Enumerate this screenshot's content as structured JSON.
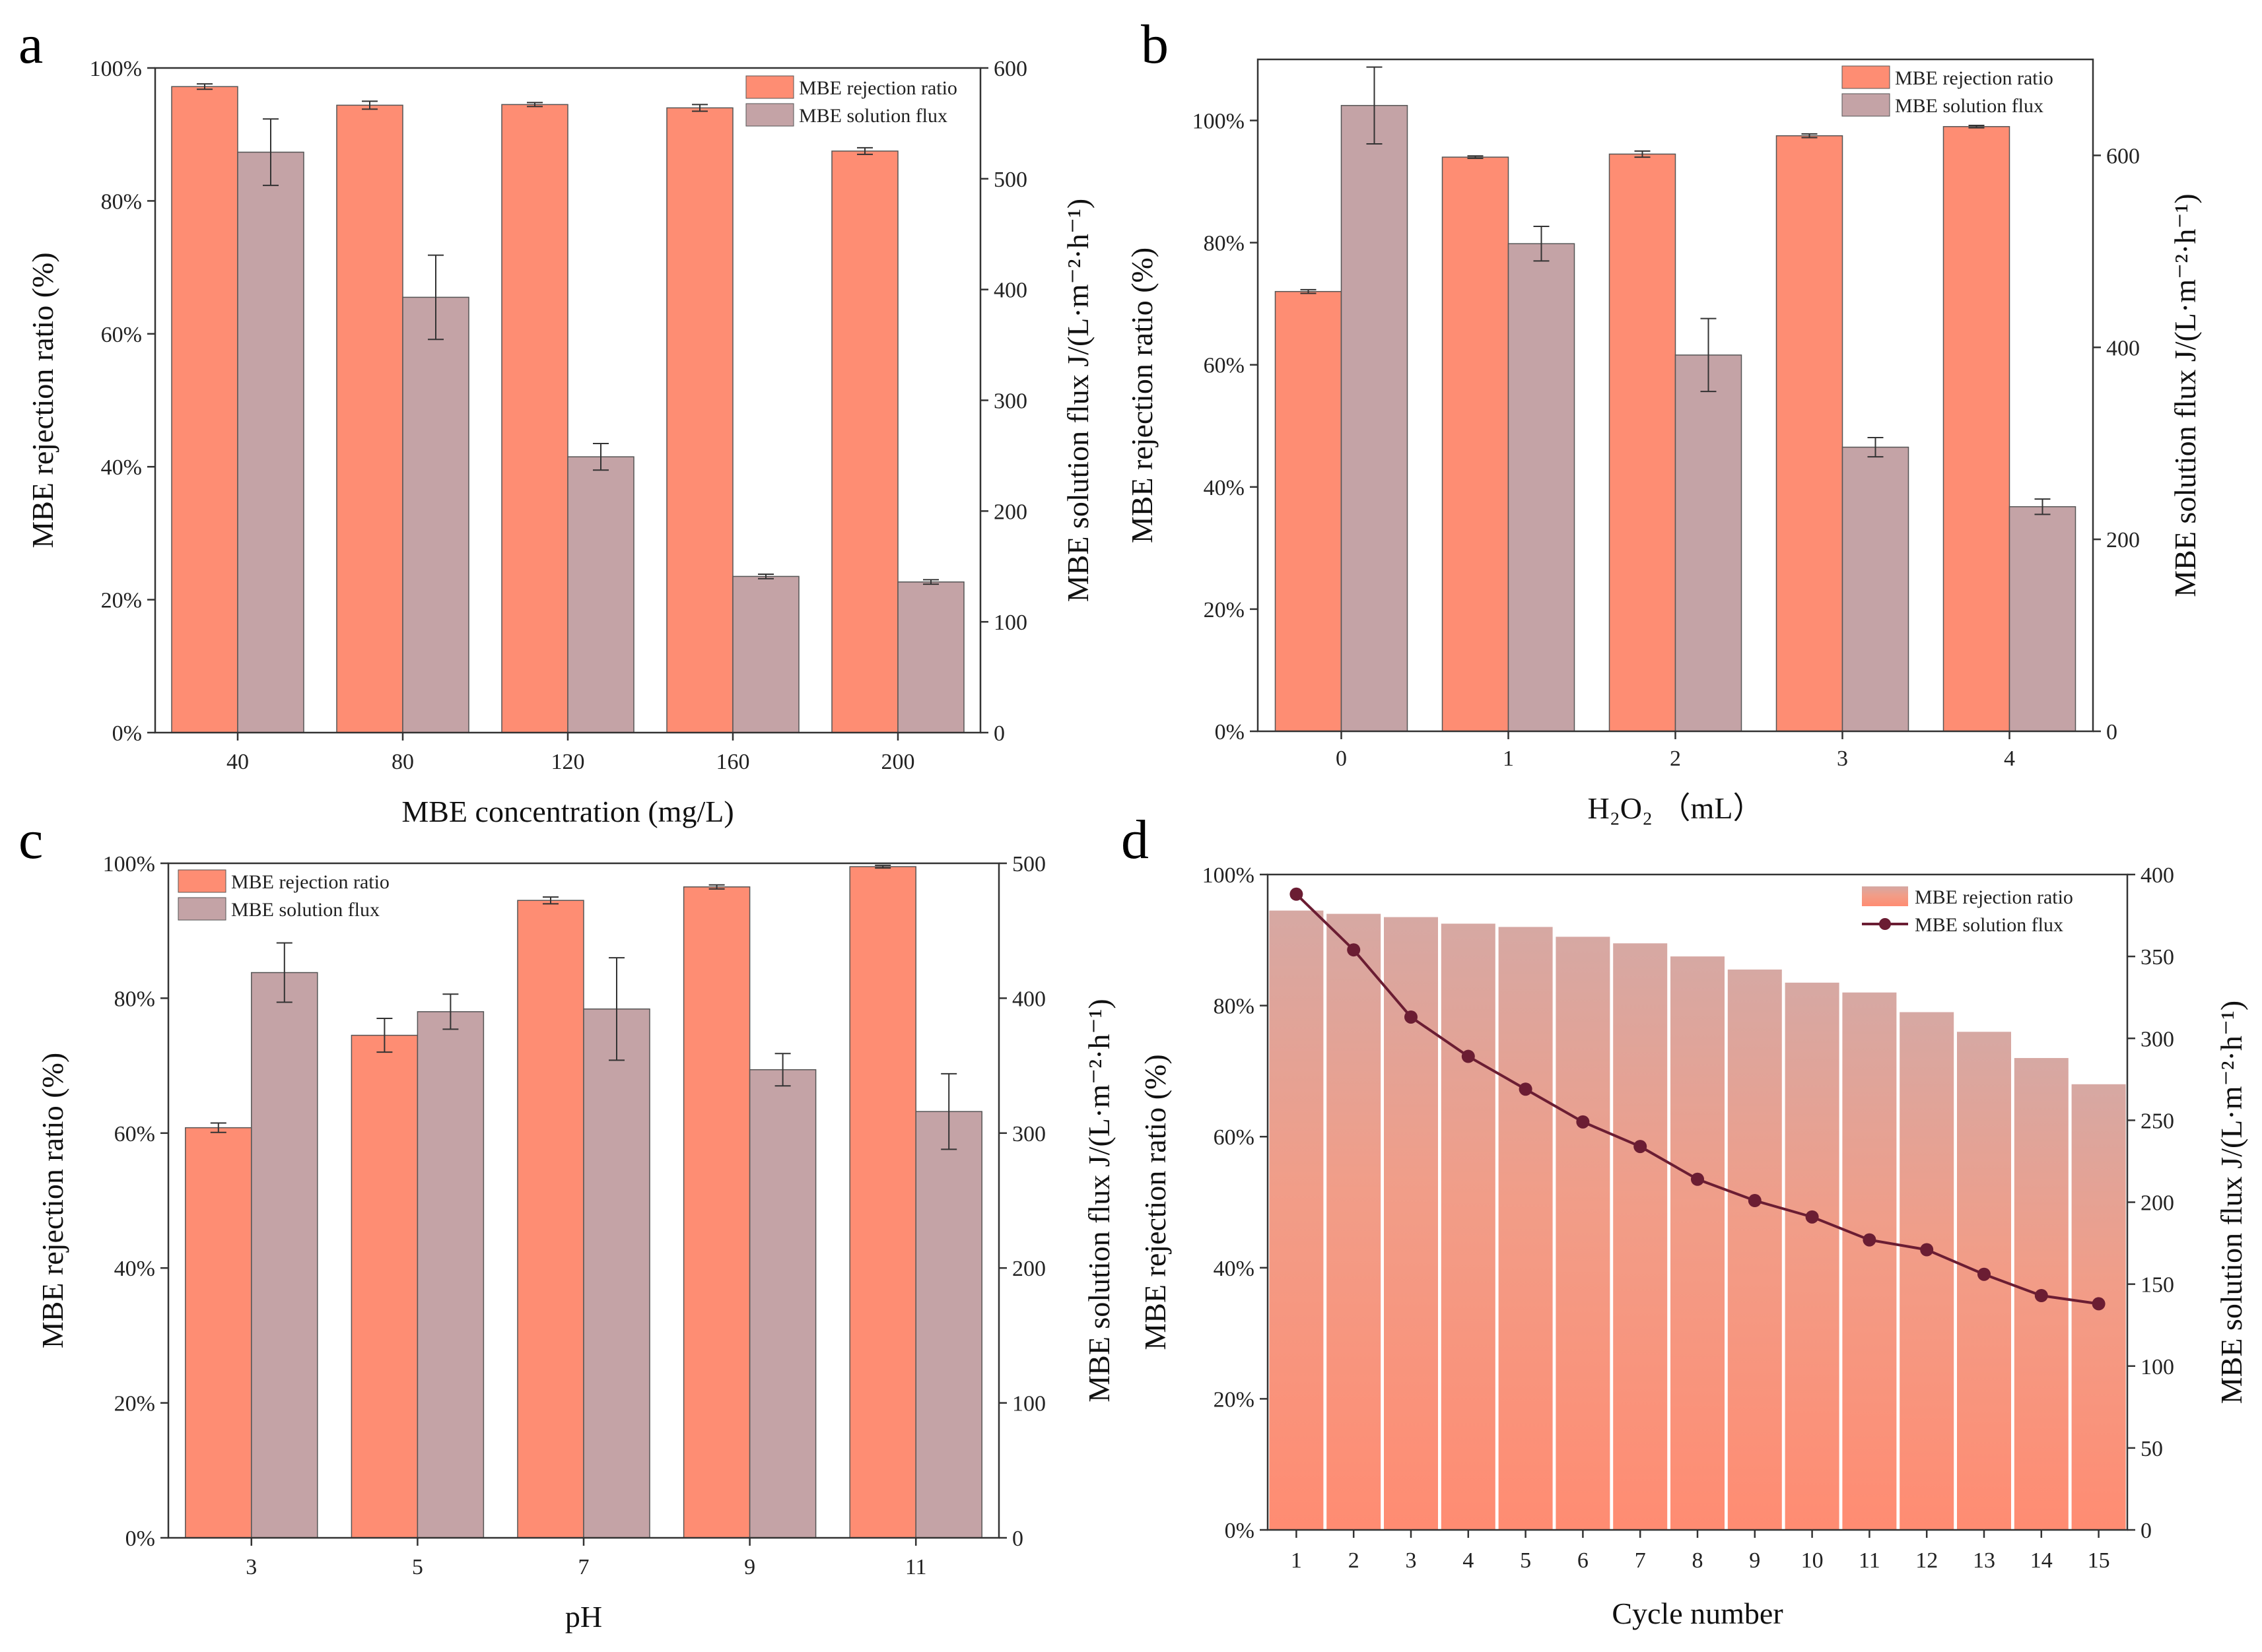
{
  "colors": {
    "rejection": "#fe8d73",
    "flux": "#c4a3a6",
    "line": "#6b1d33",
    "axis": "#333333"
  },
  "chart_data": [
    {
      "panel": "a",
      "type": "bar",
      "xlabel": "MBE concentration (mg/L)",
      "ylabel_left": "MBE rejection ratio (%)",
      "ylabel_right": "MBE solution flux J/(L·m⁻²·h⁻¹)",
      "categories": [
        "40",
        "80",
        "120",
        "160",
        "200"
      ],
      "left_ticks": [
        "0%",
        "20%",
        "40%",
        "60%",
        "80%",
        "100%"
      ],
      "right_ticks": [
        "0",
        "100",
        "200",
        "300",
        "400",
        "500",
        "600"
      ],
      "ylim_left": [
        0,
        100
      ],
      "ylim_right": [
        0,
        600
      ],
      "legend_position": "top-right",
      "series": [
        {
          "name": "MBE rejection ratio",
          "axis": "left",
          "values": [
            97.2,
            94.4,
            94.5,
            94.0,
            87.5
          ],
          "errors": [
            0.4,
            0.6,
            0.3,
            0.5,
            0.5
          ]
        },
        {
          "name": "MBE solution flux",
          "axis": "right",
          "values": [
            524,
            393,
            249,
            141,
            136
          ],
          "errors": [
            30,
            38,
            12,
            2,
            2
          ]
        }
      ]
    },
    {
      "panel": "b",
      "type": "bar",
      "xlabel": "H₂O₂ （mL）",
      "ylabel_left": "MBE rejection ratio (%)",
      "ylabel_right": "MBE solution flux J/(L·m⁻²·h⁻¹)",
      "categories": [
        "0",
        "1",
        "2",
        "3",
        "4"
      ],
      "left_ticks": [
        "0%",
        "20%",
        "40%",
        "60%",
        "80%",
        "100%"
      ],
      "right_ticks": [
        "0",
        "200",
        "400",
        "600"
      ],
      "ylim_left": [
        0,
        110
      ],
      "ylim_right": [
        0,
        700
      ],
      "legend_position": "top-right",
      "series": [
        {
          "name": "MBE rejection ratio",
          "axis": "left",
          "values": [
            72.0,
            94.0,
            94.5,
            97.5,
            99.0
          ],
          "errors": [
            0.3,
            0.2,
            0.5,
            0.3,
            0.2
          ]
        },
        {
          "name": "MBE solution flux",
          "axis": "right",
          "values": [
            652,
            508,
            392,
            296,
            234
          ],
          "errors": [
            40,
            18,
            38,
            10,
            8
          ]
        }
      ]
    },
    {
      "panel": "c",
      "type": "bar",
      "xlabel": "pH",
      "ylabel_left": "MBE rejection ratio (%)",
      "ylabel_right": "MBE solution flux J/(L·m⁻²·h⁻¹)",
      "categories": [
        "3",
        "5",
        "7",
        "9",
        "11"
      ],
      "left_ticks": [
        "0%",
        "20%",
        "40%",
        "60%",
        "80%",
        "100%"
      ],
      "right_ticks": [
        "0",
        "100",
        "200",
        "300",
        "400",
        "500"
      ],
      "ylim_left": [
        0,
        100
      ],
      "ylim_right": [
        0,
        500
      ],
      "legend_position": "top-left",
      "series": [
        {
          "name": "MBE rejection ratio",
          "axis": "left",
          "values": [
            60.8,
            74.5,
            94.5,
            96.5,
            99.5
          ],
          "errors": [
            0.7,
            2.5,
            0.5,
            0.3,
            0.2
          ]
        },
        {
          "name": "MBE solution flux",
          "axis": "right",
          "values": [
            419,
            390,
            392,
            347,
            316
          ],
          "errors": [
            22,
            13,
            38,
            12,
            28
          ]
        }
      ]
    },
    {
      "panel": "d",
      "type": "bar+line",
      "xlabel": "Cycle number",
      "ylabel_left": "MBE rejection ratio (%)",
      "ylabel_right": "MBE solution flux J/(L·m⁻²·h⁻¹)",
      "categories": [
        "1",
        "2",
        "3",
        "4",
        "5",
        "6",
        "7",
        "8",
        "9",
        "10",
        "11",
        "12",
        "13",
        "14",
        "15"
      ],
      "left_ticks": [
        "0%",
        "20%",
        "40%",
        "60%",
        "80%",
        "100%"
      ],
      "right_ticks": [
        "0",
        "50",
        "100",
        "150",
        "200",
        "250",
        "300",
        "350",
        "400"
      ],
      "ylim_left": [
        0,
        100
      ],
      "ylim_right": [
        0,
        400
      ],
      "legend_position": "top-right",
      "series": [
        {
          "name": "MBE rejection ratio",
          "axis": "left",
          "kind": "bar",
          "values": [
            94.5,
            94.0,
            93.5,
            92.5,
            92.0,
            90.5,
            89.5,
            87.5,
            85.5,
            83.5,
            82.0,
            79.0,
            76.0,
            72.0,
            68.0
          ]
        },
        {
          "name": "MBE solution flux",
          "axis": "right",
          "kind": "line",
          "values": [
            388,
            354,
            313,
            289,
            269,
            249,
            234,
            214,
            201,
            191,
            177,
            171,
            156,
            143,
            138
          ]
        }
      ]
    }
  ]
}
